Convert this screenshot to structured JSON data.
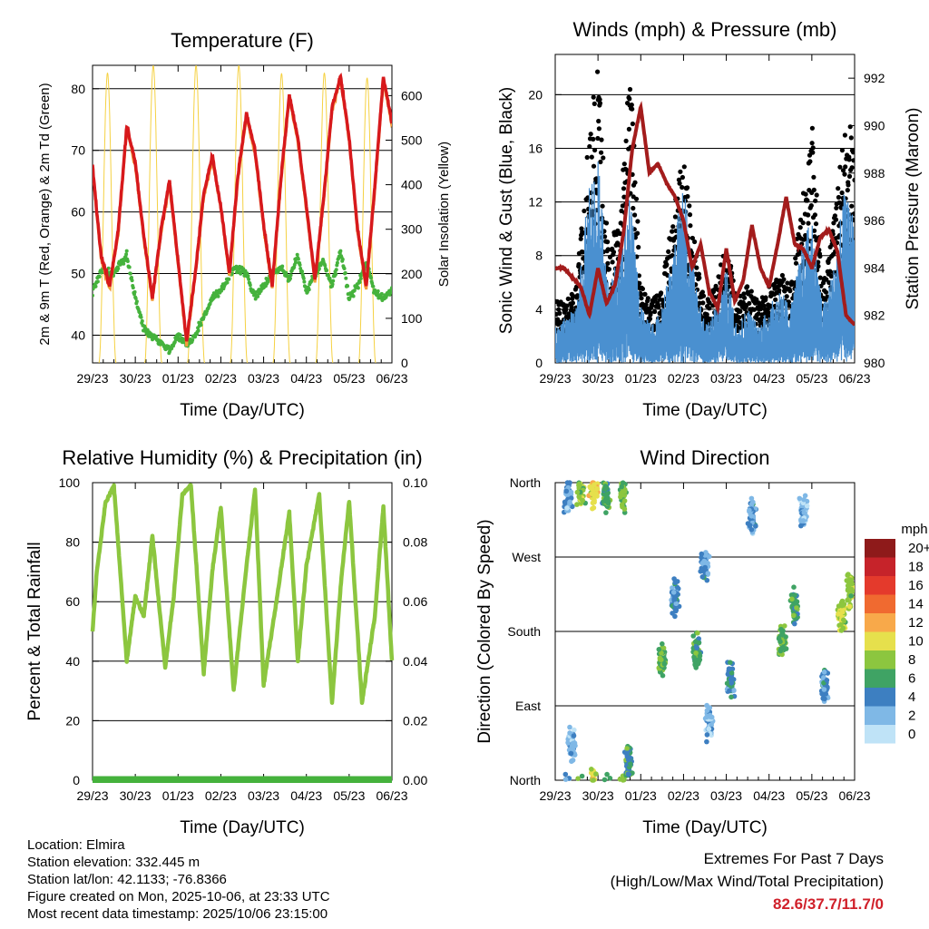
{
  "chart_data": [
    {
      "type": "line",
      "title": "Temperature (F)",
      "xlabel": "Time (Day/UTC)",
      "ylabel": "2m & 9m T (Red, Orange) & 2m Td (Green)",
      "y2label": "Solar Insolation (Yellow)",
      "ylim": [
        35.5,
        83.8
      ],
      "y2lim": [
        0,
        668
      ],
      "yticks": [
        "40",
        "50",
        "60",
        "70",
        "80"
      ],
      "y2ticks": [
        "0",
        "100",
        "200",
        "300",
        "400",
        "500",
        "600"
      ],
      "x_tick_labels": [
        "29/23",
        "30/23",
        "01/23",
        "02/23",
        "03/23",
        "04/23",
        "05/23",
        "06/23"
      ],
      "series": [
        {
          "name": "2m T",
          "color": "#d7191c",
          "x": [
            0,
            0.1,
            0.2,
            0.4,
            0.6,
            0.8,
            1.0,
            1.2,
            1.4,
            1.6,
            1.8,
            2.0,
            2.2,
            2.4,
            2.6,
            2.8,
            3.0,
            3.2,
            3.4,
            3.6,
            3.8,
            4.0,
            4.2,
            4.4,
            4.6,
            4.8,
            5.0,
            5.2,
            5.4,
            5.6,
            5.8,
            6.0,
            6.2,
            6.4,
            6.6,
            6.8,
            7.0
          ],
          "values": [
            67.5,
            60,
            53,
            48,
            57,
            74,
            68,
            56,
            46,
            57,
            65,
            52,
            39,
            50,
            63,
            69,
            61,
            50,
            66,
            76,
            70,
            58,
            48,
            65,
            79,
            72,
            61,
            49,
            62,
            77,
            82,
            72,
            57,
            48,
            64,
            82,
            74.5
          ]
        },
        {
          "name": "9m T",
          "color": "#f39c3b",
          "x": [
            0,
            0.1,
            0.2,
            0.4,
            0.6,
            0.8,
            1.0,
            1.2,
            1.4,
            1.6,
            1.8,
            2.0,
            2.2,
            2.4,
            2.6,
            2.8,
            3.0,
            3.2,
            3.4,
            3.6,
            3.8,
            4.0,
            4.2,
            4.4,
            4.6,
            4.8,
            5.0,
            5.2,
            5.4,
            5.6,
            5.8,
            6.0,
            6.2,
            6.4,
            6.6,
            6.8,
            7.0
          ],
          "values": [
            67,
            59.5,
            52.5,
            47.5,
            56.5,
            73.5,
            67.5,
            55.5,
            45.5,
            56.5,
            64.5,
            51.5,
            38.5,
            49.5,
            62.5,
            68.5,
            60.5,
            49.5,
            65.5,
            75.5,
            69.5,
            57.5,
            47.5,
            64.5,
            78.5,
            71.5,
            60.5,
            48.5,
            61.5,
            76.5,
            81.5,
            71.5,
            56.5,
            47.5,
            63.5,
            81.5,
            74
          ]
        },
        {
          "name": "2m Td",
          "color": "#45b23c",
          "x": [
            0,
            0.2,
            0.5,
            0.8,
            1.0,
            1.2,
            1.5,
            1.8,
            2.0,
            2.2,
            2.4,
            2.6,
            2.8,
            3.0,
            3.3,
            3.6,
            3.8,
            4.0,
            4.2,
            4.4,
            4.6,
            4.8,
            5.0,
            5.2,
            5.4,
            5.6,
            5.8,
            6.0,
            6.2,
            6.4,
            6.6,
            6.8,
            7.0
          ],
          "values": [
            47,
            50.5,
            50,
            53,
            46,
            41,
            39.5,
            37.5,
            40,
            38.5,
            40,
            43,
            46,
            47,
            51,
            50,
            46,
            48,
            50,
            51,
            49,
            53,
            47,
            50,
            52,
            48,
            54,
            46,
            48,
            52,
            47,
            46,
            47.5
          ]
        },
        {
          "name": "Solar Insolation",
          "color": "#f5d142",
          "axis": "right",
          "peak_times": [
            0.35,
            1.42,
            2.42,
            3.42,
            4.42,
            5.42,
            6.42
          ],
          "peaks": [
            651,
            668,
            668,
            668,
            650,
            651,
            640
          ]
        }
      ]
    },
    {
      "type": "scatter",
      "title": "Winds (mph) & Pressure (mb)",
      "xlabel": "Time (Day/UTC)",
      "ylabel": "Sonic Wind & Gust (Blue, Black)",
      "y2label": "Station Pressure (Maroon)",
      "ylim": [
        0,
        23
      ],
      "y2lim": [
        980,
        993
      ],
      "yticks": [
        "0",
        "4",
        "8",
        "12",
        "16",
        "20"
      ],
      "y2ticks": [
        "980",
        "982",
        "984",
        "986",
        "988",
        "990",
        "992"
      ],
      "x_tick_labels": [
        "29/23",
        "30/23",
        "01/23",
        "02/23",
        "03/23",
        "04/23",
        "05/23",
        "06/23"
      ],
      "series": [
        {
          "name": "Sonic Wind",
          "color": "#4a90d0",
          "x": [
            0,
            0.25,
            0.5,
            0.75,
            1.0,
            1.25,
            1.5,
            1.75,
            2.0,
            2.25,
            2.5,
            2.75,
            3.0,
            3.25,
            3.5,
            3.75,
            4.0,
            4.25,
            4.5,
            4.75,
            5.0,
            5.25,
            5.5,
            5.75,
            6.0,
            6.25,
            6.5,
            6.75,
            7.0
          ],
          "values": [
            2,
            2.5,
            3,
            9,
            11,
            4,
            6,
            9,
            3,
            2,
            3,
            6,
            10,
            5,
            2,
            3,
            5,
            2,
            3,
            2,
            3,
            4,
            3,
            6,
            8,
            3,
            5,
            9,
            8
          ]
        },
        {
          "name": "Gust",
          "color": "#000000",
          "x": [
            0,
            0.25,
            0.5,
            0.75,
            1.0,
            1.25,
            1.5,
            1.75,
            2.0,
            2.25,
            2.5,
            2.75,
            3.0,
            3.25,
            3.5,
            3.75,
            4.0,
            4.25,
            4.5,
            4.75,
            5.0,
            5.25,
            5.5,
            5.75,
            6.0,
            6.25,
            6.5,
            6.75,
            7.0
          ],
          "values": [
            4,
            4,
            5,
            14,
            20,
            7,
            10,
            20,
            5,
            4,
            5,
            10,
            14,
            8,
            4,
            5,
            8,
            4,
            5,
            4,
            5,
            6,
            5,
            10,
            16,
            5,
            9,
            15,
            16
          ]
        },
        {
          "name": "Station Pressure",
          "color": "#a31c1c",
          "axis": "right",
          "x": [
            0,
            0.2,
            0.4,
            0.6,
            0.8,
            1.0,
            1.2,
            1.4,
            1.6,
            1.8,
            2.0,
            2.2,
            2.4,
            2.6,
            2.8,
            3.0,
            3.2,
            3.4,
            3.6,
            3.8,
            4.0,
            4.2,
            4.4,
            4.6,
            4.8,
            5.0,
            5.2,
            5.4,
            5.6,
            5.8,
            6.0,
            6.2,
            6.4,
            6.6,
            6.8,
            7.0
          ],
          "values": [
            984,
            984,
            983.6,
            983.2,
            982,
            984,
            982.5,
            983.3,
            985.5,
            989,
            990.8,
            988,
            988.4,
            987.6,
            987,
            986,
            984,
            985,
            983,
            982.3,
            984.8,
            982.6,
            983.5,
            985.8,
            984,
            983.2,
            985,
            987,
            985,
            984.8,
            984,
            985.3,
            985.6,
            984.7,
            982,
            981.6
          ]
        }
      ]
    },
    {
      "type": "line",
      "title": "Relative Humidity (%) & Precipitation (in)",
      "xlabel": "Time (Day/UTC)",
      "ylabel": "Percent & Total Rainfall",
      "ylim": [
        0,
        100
      ],
      "y2lim": [
        0,
        0.1
      ],
      "yticks": [
        "0",
        "20",
        "40",
        "60",
        "80",
        "100"
      ],
      "y2ticks": [
        "0.00",
        "0.02",
        "0.04",
        "0.06",
        "0.08",
        "0.10"
      ],
      "x_tick_labels": [
        "29/23",
        "30/23",
        "01/23",
        "02/23",
        "03/23",
        "04/23",
        "05/23",
        "06/23"
      ],
      "series": [
        {
          "name": "Relative Humidity",
          "color": "#8cc63f",
          "x": [
            0,
            0.1,
            0.3,
            0.5,
            0.8,
            1.0,
            1.2,
            1.4,
            1.7,
            1.9,
            2.1,
            2.3,
            2.6,
            2.8,
            3.0,
            3.3,
            3.6,
            3.8,
            4.0,
            4.3,
            4.6,
            4.8,
            5.0,
            5.3,
            5.6,
            5.8,
            6.0,
            6.3,
            6.6,
            6.8,
            7.0
          ],
          "values": [
            50,
            70,
            93,
            99,
            40,
            62,
            55,
            82,
            38,
            62,
            96,
            99,
            36,
            70,
            92,
            30,
            72,
            98,
            32,
            60,
            90,
            40,
            72,
            96,
            26,
            65,
            94,
            26,
            55,
            92,
            40
          ]
        },
        {
          "name": "Total Precipitation",
          "color": "#45b23c",
          "axis": "right",
          "x": [
            0,
            7
          ],
          "values": [
            0,
            0
          ]
        }
      ]
    },
    {
      "type": "scatter",
      "title": "Wind Direction",
      "xlabel": "Time (Day/UTC)",
      "ylabel": "Direction (Colored By Speed)",
      "ylim": [
        0,
        360
      ],
      "yticks": [
        "North",
        "East",
        "South",
        "West",
        "North"
      ],
      "x_tick_labels": [
        "29/23",
        "30/23",
        "01/23",
        "02/23",
        "03/23",
        "04/23",
        "05/23",
        "06/23"
      ],
      "clusters": [
        {
          "t": 0.3,
          "dir": 345,
          "speed": 3
        },
        {
          "t": 0.6,
          "dir": 350,
          "speed": 8
        },
        {
          "t": 0.9,
          "dir": 352,
          "speed": 10
        },
        {
          "t": 1.2,
          "dir": 345,
          "speed": 6
        },
        {
          "t": 1.6,
          "dir": 348,
          "speed": 7
        },
        {
          "t": 0.4,
          "dir": 40,
          "speed": 2
        },
        {
          "t": 1.7,
          "dir": 20,
          "speed": 5
        },
        {
          "t": 2.5,
          "dir": 145,
          "speed": 7
        },
        {
          "t": 2.8,
          "dir": 220,
          "speed": 4
        },
        {
          "t": 3.3,
          "dir": 160,
          "speed": 6
        },
        {
          "t": 3.5,
          "dir": 260,
          "speed": 3
        },
        {
          "t": 3.6,
          "dir": 70,
          "speed": 2
        },
        {
          "t": 4.1,
          "dir": 120,
          "speed": 4
        },
        {
          "t": 4.6,
          "dir": 320,
          "speed": 3
        },
        {
          "t": 5.3,
          "dir": 170,
          "speed": 7
        },
        {
          "t": 5.6,
          "dir": 210,
          "speed": 6
        },
        {
          "t": 5.8,
          "dir": 320,
          "speed": 2
        },
        {
          "t": 6.3,
          "dir": 110,
          "speed": 4
        },
        {
          "t": 6.7,
          "dir": 200,
          "speed": 9
        },
        {
          "t": 6.9,
          "dir": 230,
          "speed": 8
        }
      ],
      "legend_title": "mph",
      "legend_labels": [
        "20+",
        "18",
        "16",
        "14",
        "12",
        "10",
        "8",
        "6",
        "4",
        "2",
        "0"
      ],
      "legend_colors": [
        "#8e1a1a",
        "#c6232a",
        "#e43a2c",
        "#f06a30",
        "#f8a94a",
        "#e6e04c",
        "#8cc63f",
        "#3fa364",
        "#3d7fc1",
        "#7fb8e6",
        "#bfe3f7"
      ]
    }
  ],
  "info": {
    "location": "Location: Elmira",
    "elevation": "Station elevation: 332.445 m",
    "latlon": "Station lat/lon: 42.1133; -76.8366",
    "created": "Figure created on Mon, 2025-10-06, at 23:33 UTC",
    "recent": "Most recent data timestamp: 2025/10/06 23:15:00"
  },
  "extremes": {
    "title": "Extremes For Past 7 Days",
    "subtitle": "(High/Low/Max Wind/Total Precipitation)",
    "values": "82.6/37.7/11.7/0",
    "color": "#d0202a"
  }
}
